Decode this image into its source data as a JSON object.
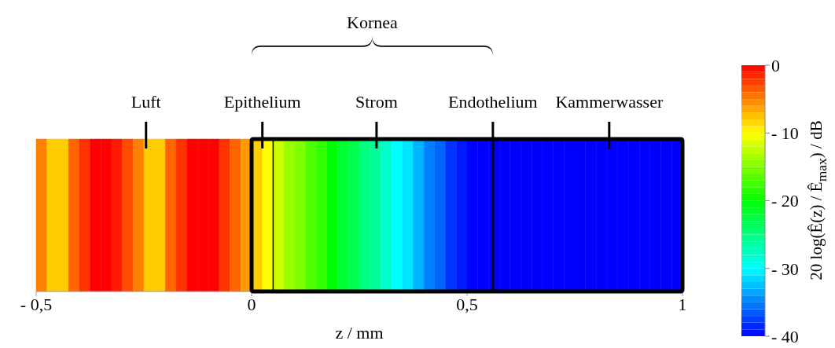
{
  "chart_data": {
    "type": "heatmap",
    "xlabel": "z / mm",
    "clabel": "20 log(Ê(z) / Ê$_{max}$) / dB",
    "x": [
      -0.4875,
      -0.4625,
      -0.4375,
      -0.4125,
      -0.3875,
      -0.3625,
      -0.3375,
      -0.3125,
      -0.2875,
      -0.2625,
      -0.2375,
      -0.2125,
      -0.1875,
      -0.1625,
      -0.1375,
      -0.1125,
      -0.0875,
      -0.0625,
      -0.0375,
      -0.0125,
      0.0125,
      0.0375,
      0.0625,
      0.0875,
      0.1125,
      0.1375,
      0.1625,
      0.1875,
      0.2125,
      0.2375,
      0.2625,
      0.2875,
      0.3125,
      0.3375,
      0.3625,
      0.3875,
      0.4125,
      0.4375,
      0.4625,
      0.4875,
      0.5125,
      0.5375,
      0.5625,
      0.5875,
      0.6125,
      0.6375,
      0.6625,
      0.6875,
      0.7125,
      0.7375,
      0.7625,
      0.7875,
      0.8125,
      0.8375,
      0.8625,
      0.8875,
      0.9125,
      0.9375,
      0.9625,
      0.9875
    ],
    "y_categories": [
      null
    ],
    "cells": [
      [
        -5,
        -8,
        -8,
        -4,
        -2,
        0,
        0,
        -1,
        -3,
        -5,
        -8,
        -8,
        -4,
        -2,
        0,
        0,
        0,
        -2,
        -4,
        -6,
        -8,
        -10,
        -12,
        -14,
        -15,
        -17,
        -18,
        -20,
        -22,
        -23,
        -25,
        -26,
        -28,
        -30,
        -31,
        -33,
        -35,
        -36,
        -38,
        -39,
        -40,
        -40,
        -40,
        -40,
        -40,
        -40,
        -40,
        -40,
        -40,
        -40,
        -40,
        -40,
        -40,
        -40,
        -40,
        -40,
        -40,
        -40,
        -40,
        -40
      ]
    ],
    "xlim": [
      -0.5,
      1
    ],
    "xticks": [
      {
        "value": -0.5,
        "label": "- 0,5"
      },
      {
        "value": 0,
        "label": "0"
      },
      {
        "value": 0.5,
        "label": "0,5"
      },
      {
        "value": 1,
        "label": "1"
      }
    ],
    "clim": [
      -40,
      0
    ],
    "cticks": [
      {
        "value": 0,
        "label": "0"
      },
      {
        "value": -10,
        "label": "- 10"
      },
      {
        "value": -20,
        "label": "- 20"
      },
      {
        "value": -30,
        "label": "- 30"
      },
      {
        "value": -40,
        "label": "- 40"
      }
    ],
    "ref_lines": [
      {
        "axis": "x",
        "value": 0.05
      },
      {
        "axis": "x",
        "value": 0.56
      }
    ],
    "annotations": [
      "Kornea",
      "Luft",
      "Epithelium",
      "Strom",
      "Endothelium",
      "Kammerwasser"
    ]
  }
}
